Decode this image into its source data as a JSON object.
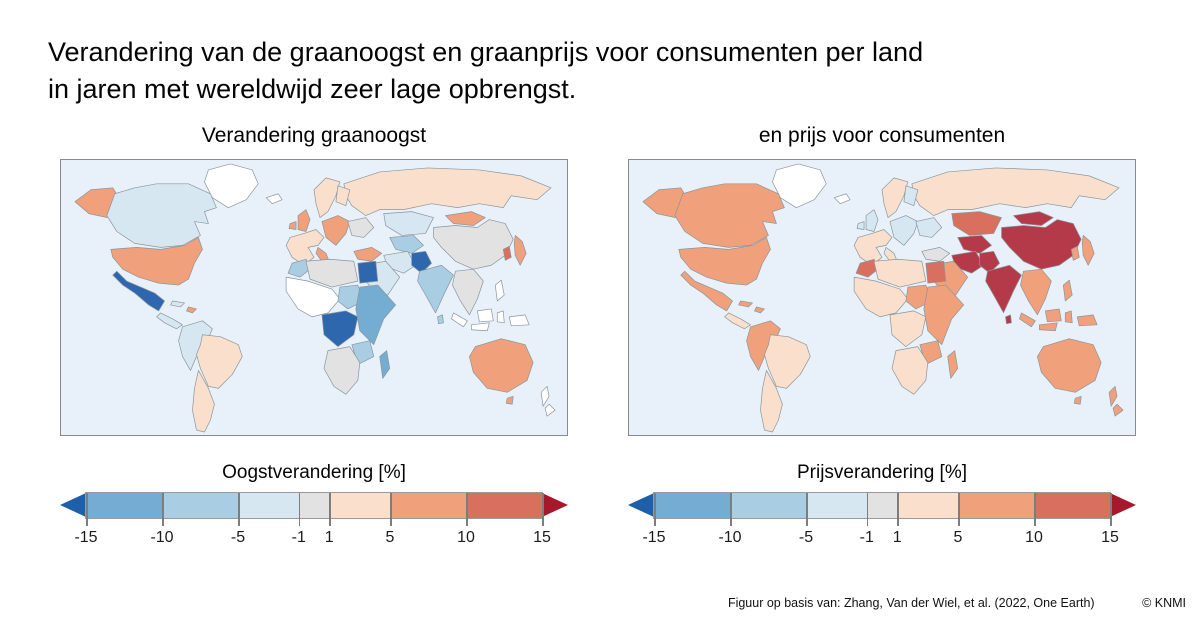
{
  "title": {
    "line1": "Verandering van de graanoogst en graanprijs voor consumenten per land",
    "line2": "in jaren met wereldwijd zeer lage opbrengst."
  },
  "footer": {
    "source": "Figuur op basis van: Zhang, Van der Wiel, et al. (2022, One Earth)",
    "copyright": "© KNMI"
  },
  "chart_data": {
    "type": "choropleth",
    "unit": "%",
    "ocean_color": "#e8f1f9",
    "country_border_color": "#8a959e",
    "colorbar": {
      "ticks": [
        -15,
        -10,
        -5,
        -1,
        1,
        5,
        10,
        15
      ],
      "segment_bins": [
        "-15..-10",
        "-10..-5",
        "-5..-1",
        "-1..1",
        "1..5",
        "5..10",
        "10..15"
      ],
      "arrow_low_color": "#1d5fa8",
      "arrow_high_color": "#a6192b",
      "range_shown": [
        -15,
        15
      ]
    },
    "palette": {
      "<-15": "#2e67ae",
      "-15..-10": "#74add1",
      "-10..-5": "#a9cee4",
      "-5..-1": "#d7e7f1",
      "-1..1": "#e2e2e2",
      "1..5": "#fadfcc",
      "5..10": "#f0a07b",
      "10..15": "#d96f5e",
      ">15": "#b43a4a",
      "no-data": "#ffffff"
    },
    "maps": [
      {
        "id": "harvest",
        "subtitle": "Verandering graanoogst",
        "legend_label": "Oogstverandering [%]",
        "regions": {
          "greenland": "no-data",
          "alaska": "5..10",
          "canada": "-5..-1",
          "usa": "5..10",
          "mexico": "<-15",
          "central_america": "-5..-1",
          "cuba": "-5..-1",
          "hispaniola": "5..10",
          "andes": "-5..-1",
          "brazil": "1..5",
          "southern_cone": "1..5",
          "iceland": "no-data",
          "uk": "5..10",
          "ireland": "5..10",
          "scandinavia": "1..5",
          "finland": "1..5",
          "west_europe": "1..5",
          "italy": "5..10",
          "east_europe": "5..10",
          "ukraine": "-1..1",
          "turkey": "5..10",
          "russia": "1..5",
          "kazakhstan": "-5..-1",
          "central_asia": "-10..-5",
          "iran": "-5..-1",
          "middle_east": "-5..-1",
          "pakistan": "<-15",
          "india": "-10..-5",
          "sri_lanka": "-10..-5",
          "china": "-1..1",
          "mongolia": "5..10",
          "korea": "10..15",
          "japan": "5..10",
          "se_asia": "-1..1",
          "philippines": "no-data",
          "sumatra": "no-data",
          "borneo": "no-data",
          "java": "no-data",
          "sulawesi": "no-data",
          "new_guinea": "no-data",
          "morocco": "-10..-5",
          "algeria_libya": "-1..1",
          "egypt": "<-15",
          "west_africa": "no-data",
          "sahel_sudan": "-10..-5",
          "central_africa": "<-15",
          "east_africa": "-15..-10",
          "zambezi": "-10..-5",
          "southern_africa": "-1..1",
          "madagascar": "-15..-10",
          "australia": "5..10",
          "tasmania": "5..10",
          "nz": "no-data"
        }
      },
      {
        "id": "price",
        "subtitle": "en prijs voor consumenten",
        "legend_label": "Prijsverandering [%]",
        "regions": {
          "greenland": "no-data",
          "alaska": "5..10",
          "canada": "5..10",
          "usa": "5..10",
          "mexico": "5..10",
          "central_america": "1..5",
          "cuba": "5..10",
          "hispaniola": "5..10",
          "andes": "5..10",
          "brazil": "1..5",
          "southern_cone": "1..5",
          "iceland": "no-data",
          "uk": "-5..-1",
          "ireland": "-5..-1",
          "scandinavia": "1..5",
          "finland": "-5..-1",
          "west_europe": "1..5",
          "italy": "1..5",
          "east_europe": "-5..-1",
          "ukraine": "-5..-1",
          "turkey": "-1..1",
          "russia": "1..5",
          "kazakhstan": "10..15",
          "central_asia": ">15",
          "iran": ">15",
          "middle_east": "5..10",
          "pakistan": ">15",
          "india": ">15",
          "sri_lanka": ">15",
          "china": ">15",
          "mongolia": ">15",
          "korea": "5..10",
          "japan": "5..10",
          "se_asia": "5..10",
          "philippines": "5..10",
          "sumatra": "5..10",
          "borneo": "5..10",
          "java": "5..10",
          "sulawesi": "5..10",
          "new_guinea": "5..10",
          "morocco": "10..15",
          "algeria_libya": "1..5",
          "egypt": "10..15",
          "west_africa": "1..5",
          "sahel_sudan": "5..10",
          "central_africa": "1..5",
          "east_africa": "5..10",
          "zambezi": "5..10",
          "southern_africa": "1..5",
          "madagascar": "5..10",
          "australia": "5..10",
          "tasmania": "5..10",
          "nz": "5..10"
        }
      }
    ]
  }
}
